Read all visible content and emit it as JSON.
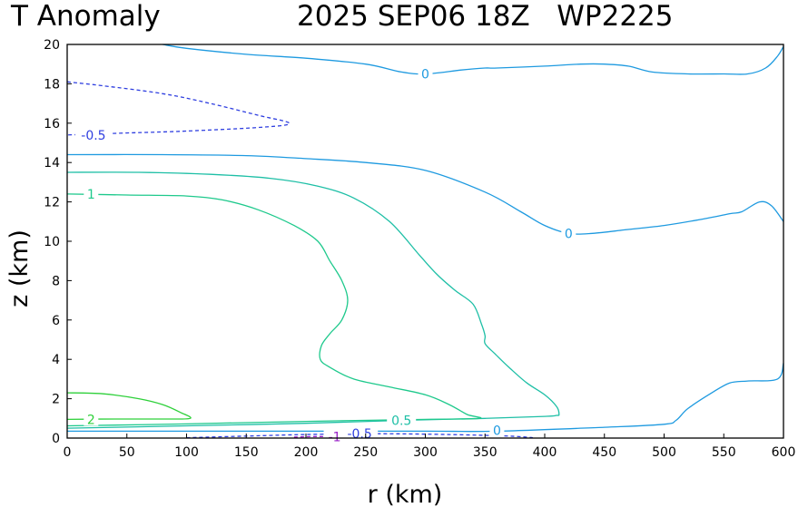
{
  "header": {
    "title_left": "T Anomaly",
    "title_right": "2025 SEP06 18Z   WP2225"
  },
  "chart_data": {
    "type": "contour",
    "xlabel": "r (km)",
    "ylabel": "z (km)",
    "xlim": [
      0,
      600
    ],
    "ylim": [
      0,
      20
    ],
    "x_ticks": [
      0,
      50,
      100,
      150,
      200,
      250,
      300,
      350,
      400,
      450,
      500,
      550,
      600
    ],
    "y_ticks": [
      0,
      2,
      4,
      6,
      8,
      10,
      12,
      14,
      16,
      18,
      20
    ],
    "colors": {
      "-1": "#9a20c8",
      "-0.5": "#2f3fe0",
      "0": "#1e9ae0",
      "0.5": "#1ebfa6",
      "1": "#1ec98c",
      "2": "#2ed03a"
    },
    "contours": [
      {
        "level": 0,
        "label": "0",
        "dashed": false,
        "points": [
          [
            80,
            20
          ],
          [
            100,
            19.8
          ],
          [
            150,
            19.5
          ],
          [
            200,
            19.3
          ],
          [
            250,
            19
          ],
          [
            280,
            18.6
          ],
          [
            300,
            18.5
          ],
          [
            330,
            18.7
          ],
          [
            350,
            18.8
          ],
          [
            360,
            18.8
          ],
          [
            400,
            18.9
          ],
          [
            430,
            19
          ],
          [
            450,
            19
          ],
          [
            470,
            18.9
          ],
          [
            490,
            18.6
          ],
          [
            520,
            18.5
          ],
          [
            550,
            18.5
          ],
          [
            570,
            18.5
          ],
          [
            585,
            18.8
          ],
          [
            595,
            19.4
          ],
          [
            600,
            19.9
          ]
        ],
        "label_at": [
          300,
          18.5
        ]
      },
      {
        "level": -0.5,
        "label": "-0.5",
        "dashed": true,
        "points": [
          [
            0,
            18.1
          ],
          [
            30,
            17.9
          ],
          [
            80,
            17.5
          ],
          [
            120,
            17
          ],
          [
            160,
            16.4
          ],
          [
            186,
            16
          ],
          [
            165,
            15.8
          ],
          [
            100,
            15.6
          ],
          [
            50,
            15.5
          ],
          [
            0,
            15.4
          ]
        ],
        "label_at": [
          22,
          15.4
        ]
      },
      {
        "level": 0,
        "label": "0",
        "dashed": false,
        "points": [
          [
            0,
            14.4
          ],
          [
            80,
            14.4
          ],
          [
            150,
            14.35
          ],
          [
            200,
            14.2
          ],
          [
            250,
            14
          ],
          [
            300,
            13.6
          ],
          [
            350,
            12.5
          ],
          [
            380,
            11.5
          ],
          [
            400,
            10.8
          ],
          [
            420,
            10.4
          ],
          [
            440,
            10.4
          ],
          [
            470,
            10.6
          ],
          [
            500,
            10.8
          ],
          [
            530,
            11.1
          ],
          [
            555,
            11.4
          ],
          [
            565,
            11.5
          ],
          [
            580,
            12
          ],
          [
            590,
            11.8
          ],
          [
            600,
            11
          ]
        ],
        "label_at": [
          420,
          10.4
        ]
      },
      {
        "level": 0.5,
        "label": "0.5",
        "dashed": false,
        "points": [
          [
            0,
            13.5
          ],
          [
            60,
            13.5
          ],
          [
            120,
            13.4
          ],
          [
            170,
            13.2
          ],
          [
            210,
            12.8
          ],
          [
            240,
            12.2
          ],
          [
            270,
            11
          ],
          [
            295,
            9.3
          ],
          [
            310,
            8.3
          ],
          [
            325,
            7.5
          ],
          [
            340,
            6.8
          ],
          [
            347,
            5.8
          ],
          [
            350,
            5.2
          ],
          [
            350,
            4.8
          ],
          [
            358,
            4.3
          ],
          [
            370,
            3.6
          ],
          [
            385,
            2.8
          ],
          [
            400,
            2.2
          ],
          [
            410,
            1.6
          ],
          [
            412,
            1.2
          ],
          [
            410,
            1.15
          ],
          [
            400,
            1.1
          ],
          [
            350,
            1
          ],
          [
            280,
            0.9
          ],
          [
            200,
            0.75
          ],
          [
            100,
            0.62
          ],
          [
            40,
            0.55
          ],
          [
            0,
            0.5
          ]
        ],
        "label_at": [
          280,
          0.9
        ]
      },
      {
        "level": 1,
        "label": "1",
        "dashed": false,
        "points": [
          [
            0,
            12.4
          ],
          [
            50,
            12.35
          ],
          [
            100,
            12.3
          ],
          [
            130,
            12.1
          ],
          [
            160,
            11.6
          ],
          [
            190,
            10.8
          ],
          [
            210,
            10
          ],
          [
            220,
            9
          ],
          [
            230,
            8
          ],
          [
            235,
            7
          ],
          [
            230,
            6
          ],
          [
            220,
            5.3
          ],
          [
            213,
            4.7
          ],
          [
            212,
            4
          ],
          [
            220,
            3.6
          ],
          [
            240,
            3
          ],
          [
            270,
            2.6
          ],
          [
            300,
            2.2
          ],
          [
            320,
            1.7
          ],
          [
            335,
            1.2
          ],
          [
            345,
            1
          ],
          [
            300,
            0.95
          ],
          [
            200,
            0.85
          ],
          [
            100,
            0.72
          ],
          [
            0,
            0.62
          ]
        ],
        "label_at": [
          20,
          12.4
        ]
      },
      {
        "level": 2,
        "label": "2",
        "dashed": false,
        "points": [
          [
            0,
            2.3
          ],
          [
            30,
            2.25
          ],
          [
            60,
            2
          ],
          [
            80,
            1.7
          ],
          [
            95,
            1.3
          ],
          [
            103,
            1
          ],
          [
            80,
            0.97
          ],
          [
            40,
            0.97
          ],
          [
            0,
            0.95
          ]
        ],
        "label_at": [
          20,
          0.95
        ]
      },
      {
        "level": 0,
        "label": "0",
        "dashed": false,
        "points": [
          [
            0,
            0.35
          ],
          [
            80,
            0.35
          ],
          [
            200,
            0.35
          ],
          [
            300,
            0.35
          ],
          [
            360,
            0.35
          ],
          [
            450,
            0.55
          ],
          [
            500,
            0.7
          ],
          [
            510,
            0.9
          ],
          [
            520,
            1.5
          ],
          [
            540,
            2.3
          ],
          [
            555,
            2.8
          ],
          [
            570,
            2.9
          ],
          [
            595,
            3
          ],
          [
            600,
            3.8
          ]
        ],
        "label_at": [
          360,
          0.4
        ]
      },
      {
        "level": -0.5,
        "label": "-0.5",
        "dashed": true,
        "points": [
          [
            100,
            0.02
          ],
          [
            150,
            0.1
          ],
          [
            200,
            0.18
          ],
          [
            260,
            0.22
          ],
          [
            320,
            0.18
          ],
          [
            370,
            0.1
          ],
          [
            390,
            0.02
          ]
        ],
        "label_at": [
          245,
          0.22
        ]
      },
      {
        "level": -1,
        "label": "-1",
        "dashed": true,
        "points": [
          [
            190,
            0.05
          ],
          [
            210,
            0.08
          ],
          [
            225,
            0.05
          ],
          [
            235,
            0.02
          ]
        ],
        "label_at": [
          224,
          0.08
        ]
      }
    ]
  }
}
